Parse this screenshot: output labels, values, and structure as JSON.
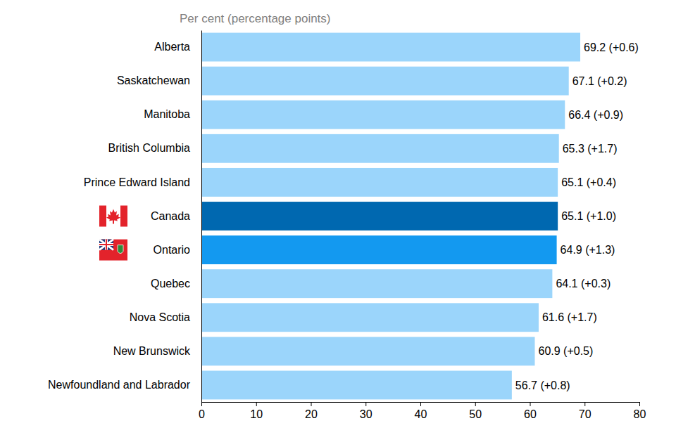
{
  "chart_data": {
    "type": "bar",
    "orientation": "horizontal",
    "xlabel": "Per cent (percentage points)",
    "categories": [
      "Alberta",
      "Saskatchewan",
      "Manitoba",
      "British Columbia",
      "Prince Edward Island",
      "Canada",
      "Ontario",
      "Quebec",
      "Nova Scotia",
      "New Brunswick",
      "Newfoundland and Labrador"
    ],
    "values": [
      69.2,
      67.1,
      66.4,
      65.3,
      65.1,
      65.1,
      64.9,
      64.1,
      61.6,
      60.9,
      56.7
    ],
    "value_labels": [
      "69.2 (+0.6)",
      "67.1 (+0.2)",
      "66.4 (+0.9)",
      "65.3 (+1.7)",
      "65.1 (+0.4)",
      "65.1 (+1.0)",
      "64.9 (+1.3)",
      "64.1 (+0.3)",
      "61.6 (+1.7)",
      "60.9 (+0.5)",
      "56.7 (+0.8)"
    ],
    "colors": [
      "#9bd5fb",
      "#9bd5fb",
      "#9bd5fb",
      "#9bd5fb",
      "#9bd5fb",
      "#0068b0",
      "#1399f0",
      "#9bd5fb",
      "#9bd5fb",
      "#9bd5fb",
      "#9bd5fb"
    ],
    "xlim": [
      0,
      80
    ],
    "xticks": [
      0,
      10,
      20,
      30,
      40,
      50,
      60,
      70,
      80
    ],
    "data_labels": true,
    "grid": false
  }
}
